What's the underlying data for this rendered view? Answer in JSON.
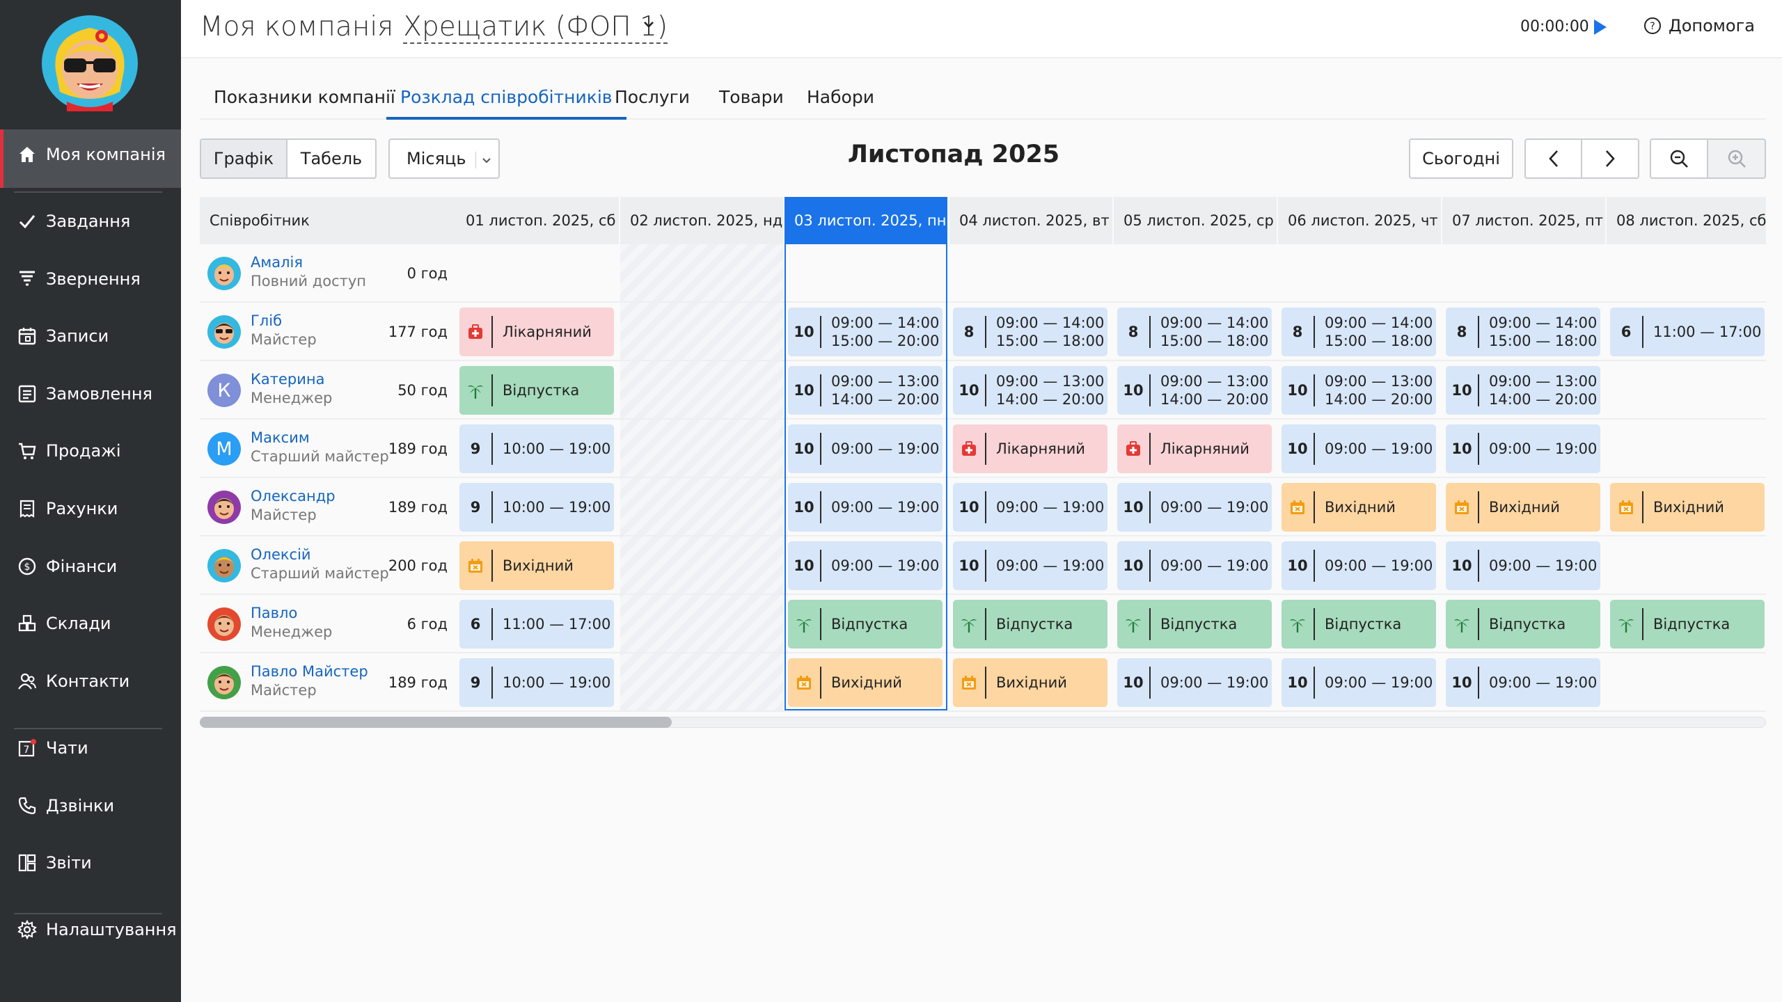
{
  "sidebar": {
    "items": [
      {
        "label": "Моя компанія",
        "icon": "home-icon"
      },
      {
        "label": "Завдання",
        "icon": "check-icon"
      },
      {
        "label": "Звернення",
        "icon": "funnel-icon"
      },
      {
        "label": "Записи",
        "icon": "calendar-icon"
      },
      {
        "label": "Замовлення",
        "icon": "list-icon"
      },
      {
        "label": "Продажі",
        "icon": "cart-icon"
      },
      {
        "label": "Рахунки",
        "icon": "invoice-icon"
      },
      {
        "label": "Фінанси",
        "icon": "dollar-icon"
      },
      {
        "label": "Склади",
        "icon": "boxes-icon"
      },
      {
        "label": "Контакти",
        "icon": "contacts-icon"
      },
      {
        "label": "Чати",
        "icon": "chat-icon",
        "badge": "7"
      },
      {
        "label": "Дзвінки",
        "icon": "phone-icon"
      },
      {
        "label": "Звіти",
        "icon": "reports-icon"
      },
      {
        "label": "Налаштування",
        "icon": "gear-icon"
      }
    ]
  },
  "header": {
    "company_prefix": "Моя компанія",
    "company_name": "Хрещатик (ФОП 1)",
    "timer": "00:00:00",
    "help": "Допомога"
  },
  "tabs": [
    "Показники компанії",
    "Розклад співробітників",
    "Послуги",
    "Товари",
    "Набори"
  ],
  "active_tab": "Розклад співробітників",
  "toolbar": {
    "view_graph": "Графік",
    "view_table": "Табель",
    "period": "Місяць",
    "title": "Листопад 2025",
    "today": "Сьогодні"
  },
  "grid": {
    "employee_header": "Співробітник",
    "days": [
      "01 листоп. 2025, сб",
      "02 листоп. 2025, нд",
      "03 листоп. 2025, пн",
      "04 листоп. 2025, вт",
      "05 листоп. 2025, ср",
      "06 листоп. 2025, чт",
      "07 листоп. 2025, пт",
      "08 листоп. 2025, сб"
    ],
    "today_index": 2,
    "employees": [
      {
        "name": "Амалія",
        "role": "Повний доступ",
        "hours": "0 год",
        "avatar": "avatar-amaliia",
        "cells": [
          null,
          null,
          null,
          null,
          null,
          null,
          null,
          null
        ]
      },
      {
        "name": "Гліб",
        "role": "Майстер",
        "hours": "177 год",
        "avatar": "avatar-hlib",
        "cells": [
          {
            "type": "sick",
            "label": "Лікарняний"
          },
          null,
          {
            "type": "shift",
            "hrs": "10",
            "times": [
              "09:00 — 14:00",
              "15:00 — 20:00"
            ]
          },
          {
            "type": "shift",
            "hrs": "8",
            "times": [
              "09:00 — 14:00",
              "15:00 — 18:00"
            ]
          },
          {
            "type": "shift",
            "hrs": "8",
            "times": [
              "09:00 — 14:00",
              "15:00 — 18:00"
            ]
          },
          {
            "type": "shift",
            "hrs": "8",
            "times": [
              "09:00 — 14:00",
              "15:00 — 18:00"
            ]
          },
          {
            "type": "shift",
            "hrs": "8",
            "times": [
              "09:00 — 14:00",
              "15:00 — 18:00"
            ]
          },
          {
            "type": "shift",
            "hrs": "6",
            "times": [
              "11:00 — 17:00"
            ]
          }
        ]
      },
      {
        "name": "Катерина",
        "role": "Менеджер",
        "hours": "50 год",
        "avatar": "К",
        "avatar_color": "#7f8fd8",
        "cells": [
          {
            "type": "vacation",
            "label": "Відпустка"
          },
          null,
          {
            "type": "shift",
            "hrs": "10",
            "times": [
              "09:00 — 13:00",
              "14:00 — 20:00"
            ]
          },
          {
            "type": "shift",
            "hrs": "10",
            "times": [
              "09:00 — 13:00",
              "14:00 — 20:00"
            ]
          },
          {
            "type": "shift",
            "hrs": "10",
            "times": [
              "09:00 — 13:00",
              "14:00 — 20:00"
            ]
          },
          {
            "type": "shift",
            "hrs": "10",
            "times": [
              "09:00 — 13:00",
              "14:00 — 20:00"
            ]
          },
          {
            "type": "shift",
            "hrs": "10",
            "times": [
              "09:00 — 13:00",
              "14:00 — 20:00"
            ]
          },
          null
        ]
      },
      {
        "name": "Максим",
        "role": "Старший майстер",
        "hours": "189 год",
        "avatar": "М",
        "avatar_color": "#2a9df4",
        "cells": [
          {
            "type": "shift",
            "hrs": "9",
            "times": [
              "10:00 — 19:00"
            ]
          },
          null,
          {
            "type": "shift",
            "hrs": "10",
            "times": [
              "09:00 — 19:00"
            ]
          },
          {
            "type": "sick",
            "label": "Лікарняний"
          },
          {
            "type": "sick",
            "label": "Лікарняний"
          },
          {
            "type": "shift",
            "hrs": "10",
            "times": [
              "09:00 — 19:00"
            ]
          },
          {
            "type": "shift",
            "hrs": "10",
            "times": [
              "09:00 — 19:00"
            ]
          },
          null
        ]
      },
      {
        "name": "Олександр",
        "role": "Майстер",
        "hours": "189 год",
        "avatar": "avatar-oleksandr",
        "cells": [
          {
            "type": "shift",
            "hrs": "9",
            "times": [
              "10:00 — 19:00"
            ]
          },
          null,
          {
            "type": "shift",
            "hrs": "10",
            "times": [
              "09:00 — 19:00"
            ]
          },
          {
            "type": "shift",
            "hrs": "10",
            "times": [
              "09:00 — 19:00"
            ]
          },
          {
            "type": "shift",
            "hrs": "10",
            "times": [
              "09:00 — 19:00"
            ]
          },
          {
            "type": "dayoff",
            "label": "Вихідний"
          },
          {
            "type": "dayoff",
            "label": "Вихідний"
          },
          {
            "type": "dayoff",
            "label": "Вихідний"
          }
        ]
      },
      {
        "name": "Олексій",
        "role": "Старший майстер",
        "hours": "200 год",
        "avatar": "avatar-oleksii",
        "cells": [
          {
            "type": "dayoff",
            "label": "Вихідний"
          },
          null,
          {
            "type": "shift",
            "hrs": "10",
            "times": [
              "09:00 — 19:00"
            ]
          },
          {
            "type": "shift",
            "hrs": "10",
            "times": [
              "09:00 — 19:00"
            ]
          },
          {
            "type": "shift",
            "hrs": "10",
            "times": [
              "09:00 — 19:00"
            ]
          },
          {
            "type": "shift",
            "hrs": "10",
            "times": [
              "09:00 — 19:00"
            ]
          },
          {
            "type": "shift",
            "hrs": "10",
            "times": [
              "09:00 — 19:00"
            ]
          },
          null
        ]
      },
      {
        "name": "Павло",
        "role": "Менеджер",
        "hours": "6 год",
        "avatar": "avatar-pavlo",
        "cells": [
          {
            "type": "shift",
            "hrs": "6",
            "times": [
              "11:00 — 17:00"
            ]
          },
          null,
          {
            "type": "vacation",
            "label": "Відпустка"
          },
          {
            "type": "vacation",
            "label": "Відпустка"
          },
          {
            "type": "vacation",
            "label": "Відпустка"
          },
          {
            "type": "vacation",
            "label": "Відпустка"
          },
          {
            "type": "vacation",
            "label": "Відпустка"
          },
          {
            "type": "vacation",
            "label": "Відпустка"
          }
        ]
      },
      {
        "name": "Павло Майстер",
        "role": "Майстер",
        "hours": "189 год",
        "avatar": "avatar-pavlo-maister",
        "cells": [
          {
            "type": "shift",
            "hrs": "9",
            "times": [
              "10:00 — 19:00"
            ]
          },
          null,
          {
            "type": "dayoff",
            "label": "Вихідний"
          },
          {
            "type": "dayoff",
            "label": "Вихідний"
          },
          {
            "type": "shift",
            "hrs": "10",
            "times": [
              "09:00 — 19:00"
            ]
          },
          {
            "type": "shift",
            "hrs": "10",
            "times": [
              "09:00 — 19:00"
            ]
          },
          {
            "type": "shift",
            "hrs": "10",
            "times": [
              "09:00 — 19:00"
            ]
          },
          null
        ]
      }
    ]
  },
  "colors": {
    "sidebar_bg": "#2d3033",
    "accent": "#1a73e8",
    "shift": "#d7e6f8",
    "sick": "#f9d3d6",
    "vacation": "#a7dbbd",
    "dayoff": "#fdd6a2"
  }
}
